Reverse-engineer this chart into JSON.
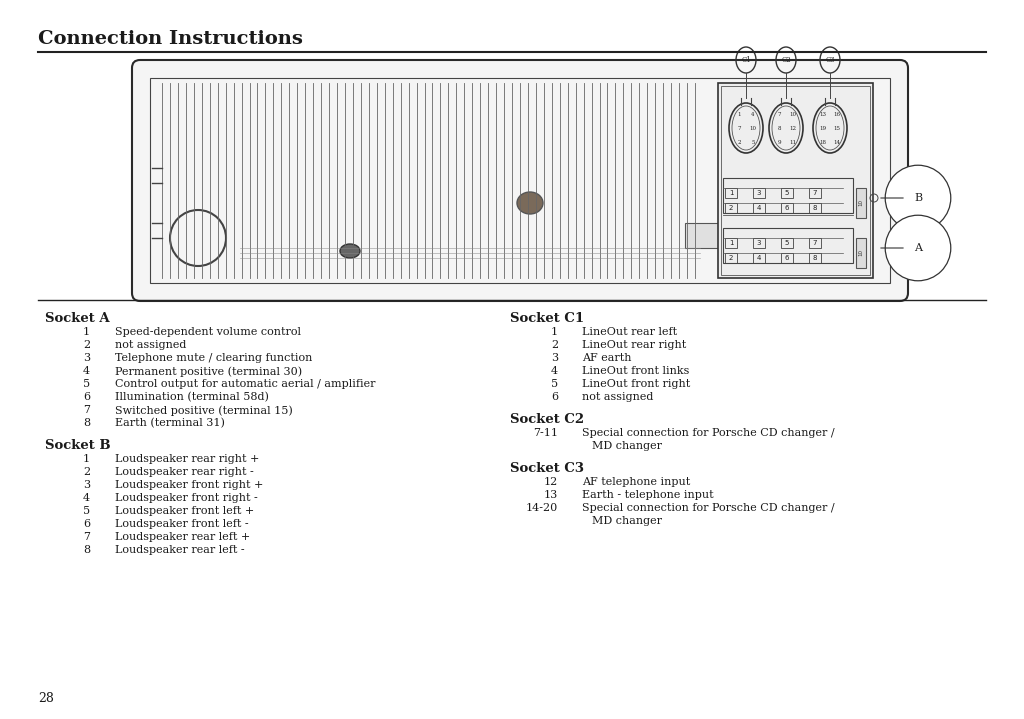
{
  "title": "Connection Instructions",
  "bg_color": "#ffffff",
  "text_color": "#1a1a1a",
  "page_number": "28",
  "socket_a_header": "Socket A",
  "socket_a_items": [
    [
      "1",
      "Speed-dependent volume control"
    ],
    [
      "2",
      "not assigned"
    ],
    [
      "3",
      "Telephone mute / clearing function"
    ],
    [
      "4",
      "Permanent positive (terminal 30)"
    ],
    [
      "5",
      "Control output for automatic aerial / amplifier"
    ],
    [
      "6",
      "Illumination (terminal 58d)"
    ],
    [
      "7",
      "Switched positive (terminal 15)"
    ],
    [
      "8",
      "Earth (terminal 31)"
    ]
  ],
  "socket_b_header": "Socket B",
  "socket_b_items": [
    [
      "1",
      "Loudspeaker rear right +"
    ],
    [
      "2",
      "Loudspeaker rear right -"
    ],
    [
      "3",
      "Loudspeaker front right +"
    ],
    [
      "4",
      "Loudspeaker front right -"
    ],
    [
      "5",
      "Loudspeaker front left +"
    ],
    [
      "6",
      "Loudspeaker front left -"
    ],
    [
      "7",
      "Loudspeaker rear left +"
    ],
    [
      "8",
      "Loudspeaker rear left -"
    ]
  ],
  "socket_c1_header": "Socket C1",
  "socket_c1_items": [
    [
      "1",
      "LineOut rear left"
    ],
    [
      "2",
      "LineOut rear right"
    ],
    [
      "3",
      "AF earth"
    ],
    [
      "4",
      "LineOut front links"
    ],
    [
      "5",
      "LineOut front right"
    ],
    [
      "6",
      "not assigned"
    ]
  ],
  "socket_c2_header": "Socket C2",
  "socket_c2_items": [
    [
      "7-11",
      "Special connection for Porsche CD changer /\nMD changer"
    ]
  ],
  "socket_c3_header": "Socket C3",
  "socket_c3_items": [
    [
      "12",
      "AF telephone input"
    ],
    [
      "13",
      "Earth - telephone input"
    ],
    [
      "14-20",
      "Special connection for Porsche CD changer /\nMD changer"
    ]
  ]
}
